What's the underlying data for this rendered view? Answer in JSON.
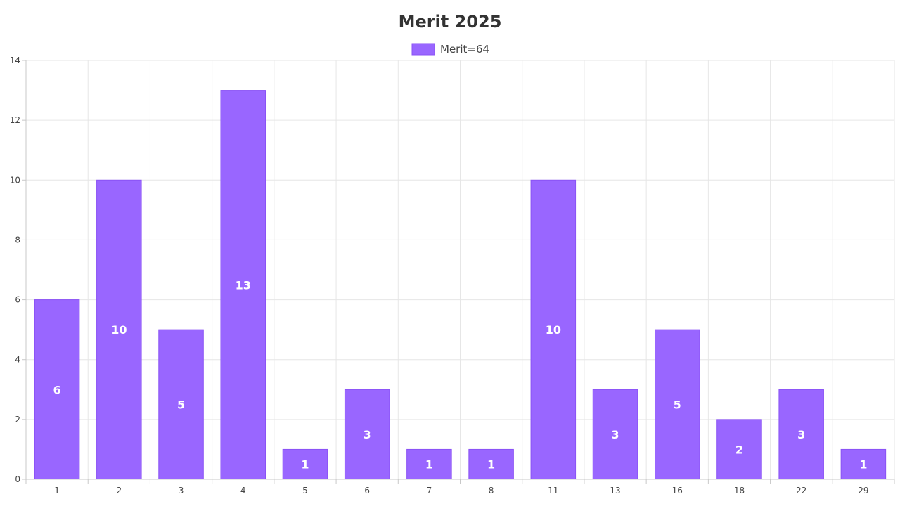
{
  "chart_data": {
    "type": "bar",
    "title": "Merit 2025",
    "xlabel": "",
    "ylabel": "",
    "categories": [
      "1",
      "2",
      "3",
      "4",
      "5",
      "6",
      "7",
      "8",
      "11",
      "13",
      "16",
      "18",
      "22",
      "29"
    ],
    "series": [
      {
        "name": "Merit=64",
        "values": [
          6,
          10,
          5,
          13,
          1,
          3,
          1,
          1,
          10,
          3,
          5,
          2,
          3,
          1
        ],
        "color": "#9966ff",
        "border_color": "#8a52f5"
      }
    ],
    "ylim": [
      0,
      14
    ],
    "y_ticks": [
      0,
      2,
      4,
      6,
      8,
      10,
      12,
      14
    ],
    "grid": true,
    "legend_position": "top-center",
    "data_labels": true
  }
}
